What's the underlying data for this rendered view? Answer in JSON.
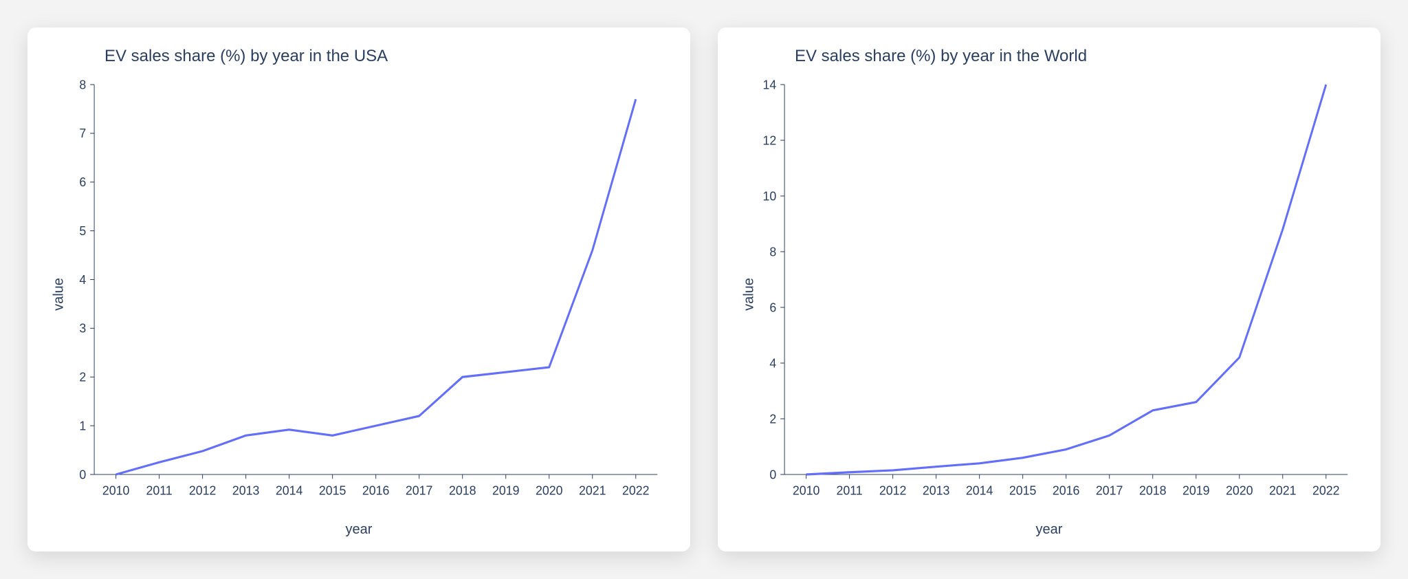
{
  "background_color": "#f3f3f3",
  "card_background": "#ffffff",
  "axis_color": "#2a3f5f",
  "line_color": "#636efa",
  "charts": [
    {
      "type": "line",
      "title": "EV sales share (%) by year in the USA",
      "xlabel": "year",
      "ylabel": "value",
      "years": [
        2010,
        2011,
        2012,
        2013,
        2014,
        2015,
        2016,
        2017,
        2018,
        2019,
        2020,
        2021,
        2022
      ],
      "values": [
        0.0,
        0.25,
        0.48,
        0.8,
        0.92,
        0.8,
        1.0,
        1.2,
        2.0,
        2.1,
        2.2,
        4.6,
        7.7
      ],
      "ylim": [
        0,
        8
      ],
      "ytick_step": 1,
      "line_width": 3,
      "title_fontsize": 24,
      "label_fontsize": 20,
      "tick_fontsize": 18
    },
    {
      "type": "line",
      "title": "EV sales share (%) by year in the World",
      "xlabel": "year",
      "ylabel": "value",
      "years": [
        2010,
        2011,
        2012,
        2013,
        2014,
        2015,
        2016,
        2017,
        2018,
        2019,
        2020,
        2021,
        2022
      ],
      "values": [
        0.0,
        0.08,
        0.15,
        0.28,
        0.4,
        0.6,
        0.9,
        1.4,
        2.3,
        2.6,
        4.2,
        8.8,
        14.0
      ],
      "ylim": [
        0,
        14
      ],
      "ytick_step": 2,
      "line_width": 3,
      "title_fontsize": 24,
      "label_fontsize": 20,
      "tick_fontsize": 18
    }
  ]
}
